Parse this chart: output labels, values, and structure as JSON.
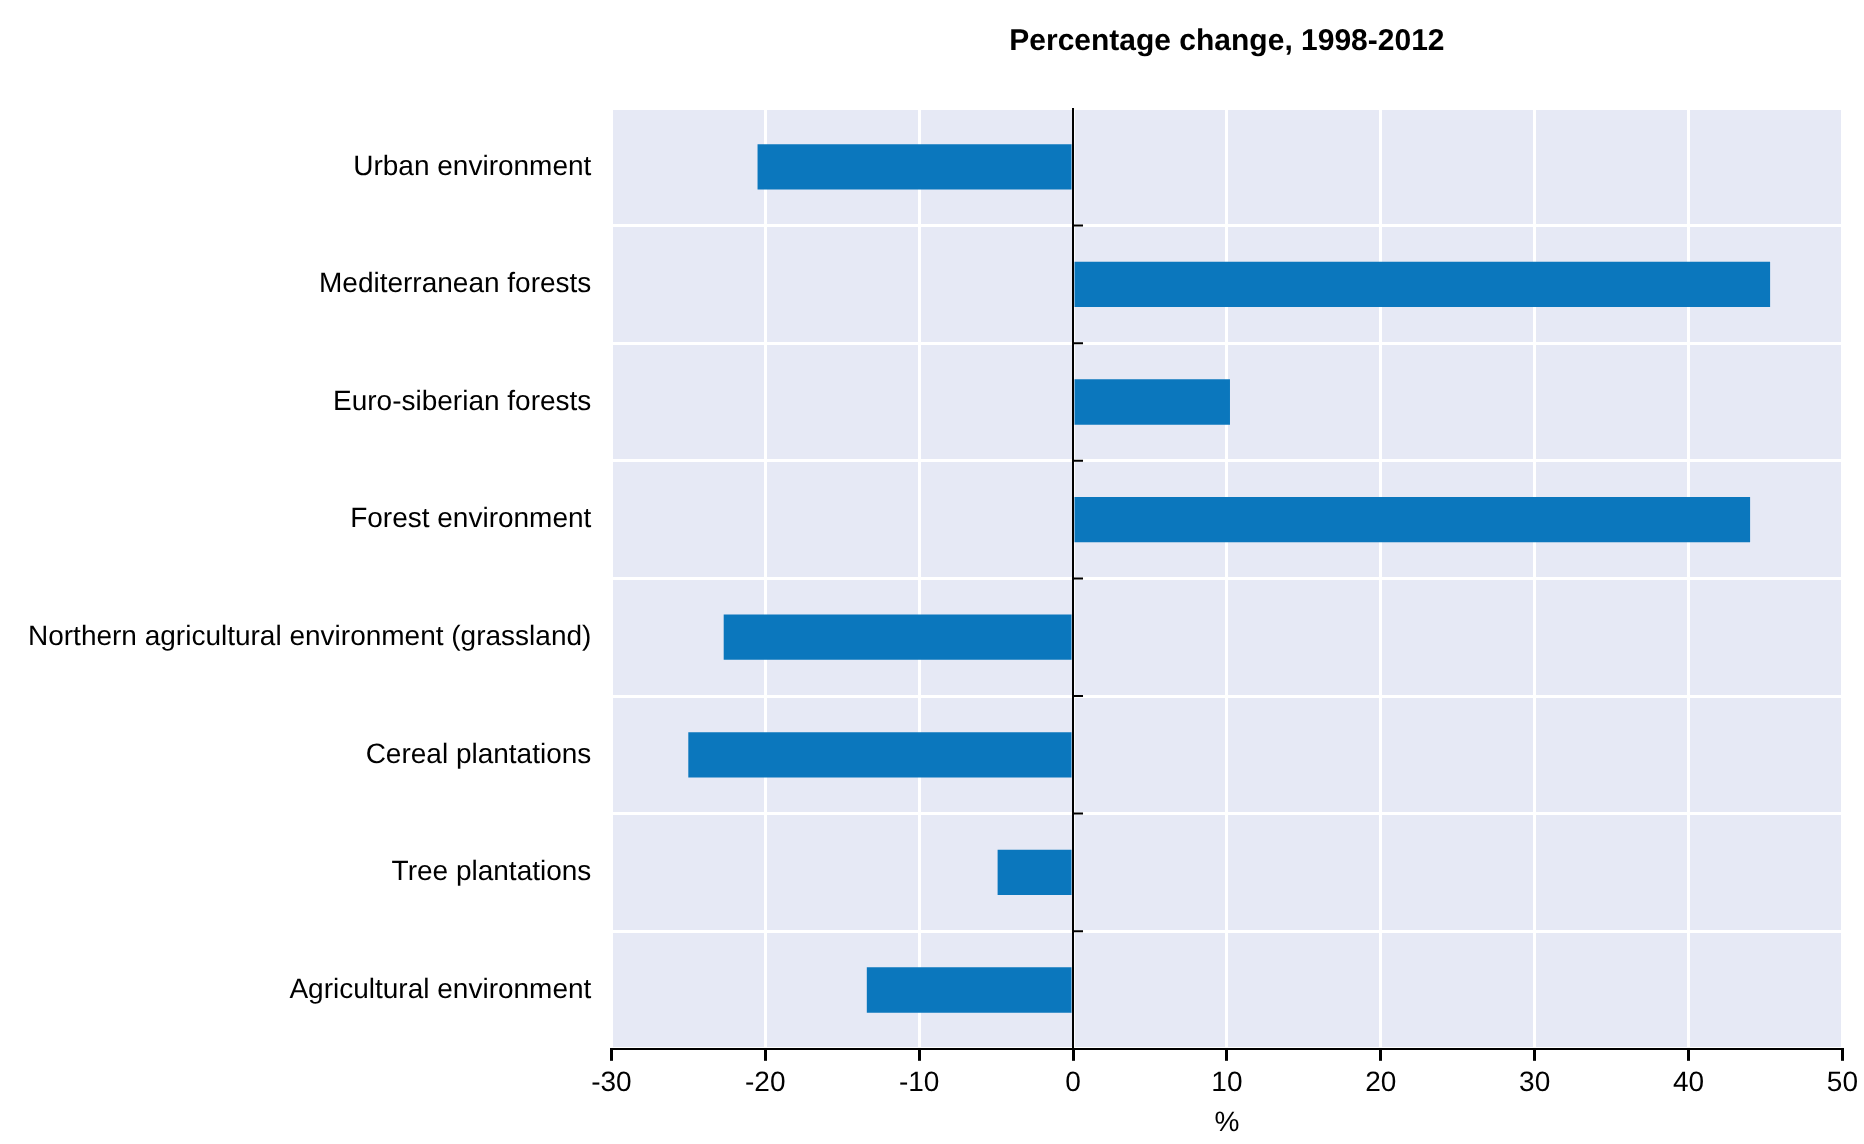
{
  "chart_data": {
    "type": "bar",
    "orientation": "horizontal",
    "title": "Percentage change, 1998-2012",
    "xlabel": "%",
    "categories": [
      "Urban environment",
      "Mediterranean forests",
      "Euro-siberian forests",
      "Forest environment",
      "Northern agricultural environment (grassland)",
      "Cereal plantations",
      "Tree plantations",
      "Agricultural environment"
    ],
    "values": [
      -20.5,
      45.3,
      10.2,
      44.0,
      -22.7,
      -25.0,
      -4.9,
      -13.4
    ],
    "color": "#0b77bd",
    "xlim": [
      -30,
      50
    ],
    "xticks": [
      -30,
      -20,
      -10,
      0,
      10,
      20,
      30,
      40,
      50
    ],
    "grid": true,
    "legend": false
  }
}
